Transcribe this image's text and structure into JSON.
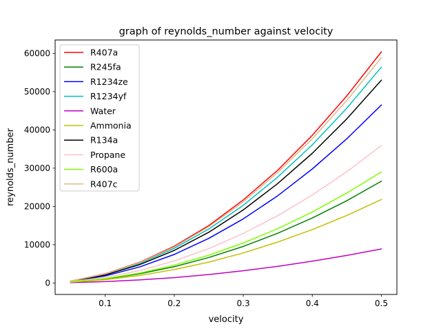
{
  "chart_data": {
    "type": "line",
    "title": "graph of reynolds_number against velocity",
    "xlabel": "velocity",
    "ylabel": "reynolds_number",
    "xlim": [
      0.0275,
      0.5225
    ],
    "ylim": [
      -3000,
      63500
    ],
    "x": [
      0.05,
      0.1,
      0.15,
      0.2,
      0.25,
      0.3,
      0.35,
      0.4,
      0.45,
      0.5
    ],
    "xticks": [
      0.1,
      0.2,
      0.3,
      0.4,
      0.5
    ],
    "xtick_labels": [
      "0.1",
      "0.2",
      "0.3",
      "0.4",
      "0.5"
    ],
    "yticks": [
      0,
      10000,
      20000,
      30000,
      40000,
      50000,
      60000
    ],
    "ytick_labels": [
      "0",
      "10000",
      "20000",
      "30000",
      "40000",
      "50000",
      "60000"
    ],
    "grid": false,
    "legend_position": "top-left",
    "series": [
      {
        "name": "R407a",
        "color": "#ff0000",
        "values": [
          500,
          2400,
          5400,
          9600,
          15000,
          21700,
          29500,
          38600,
          48900,
          60400
        ]
      },
      {
        "name": "R245fa",
        "color": "#008000",
        "values": [
          250,
          1050,
          2400,
          4250,
          6650,
          9550,
          13000,
          17000,
          21500,
          26600
        ]
      },
      {
        "name": "R1234ze",
        "color": "#0000ff",
        "values": [
          400,
          1850,
          4200,
          7450,
          11650,
          16750,
          22800,
          29800,
          37700,
          46500
        ]
      },
      {
        "name": "R1234yf",
        "color": "#00bfbf",
        "values": [
          450,
          2250,
          5100,
          9050,
          14100,
          20300,
          27700,
          36100,
          45700,
          56400
        ]
      },
      {
        "name": "Water",
        "color": "#bf00bf",
        "values": [
          100,
          350,
          800,
          1400,
          2200,
          3200,
          4350,
          5700,
          7200,
          8900
        ]
      },
      {
        "name": "Ammonia",
        "color": "#bfbf00",
        "values": [
          200,
          850,
          1950,
          3500,
          5450,
          7850,
          10700,
          13950,
          17650,
          21800
        ]
      },
      {
        "name": "R134a",
        "color": "#000000",
        "values": [
          450,
          2100,
          4800,
          8500,
          13250,
          19100,
          26000,
          33900,
          42900,
          53000
        ]
      },
      {
        "name": "Propane",
        "color": "#ffc0cb",
        "values": [
          350,
          1450,
          3250,
          5750,
          9000,
          12950,
          17600,
          23000,
          29100,
          35900
        ]
      },
      {
        "name": "R600a",
        "color": "#7fff00",
        "values": [
          300,
          1150,
          2600,
          4650,
          7250,
          10450,
          14200,
          18550,
          23500,
          29000
        ]
      },
      {
        "name": "R407c",
        "color": "#deb887",
        "values": [
          500,
          2350,
          5300,
          9400,
          14700,
          21200,
          28900,
          37700,
          47700,
          58900
        ]
      }
    ]
  }
}
